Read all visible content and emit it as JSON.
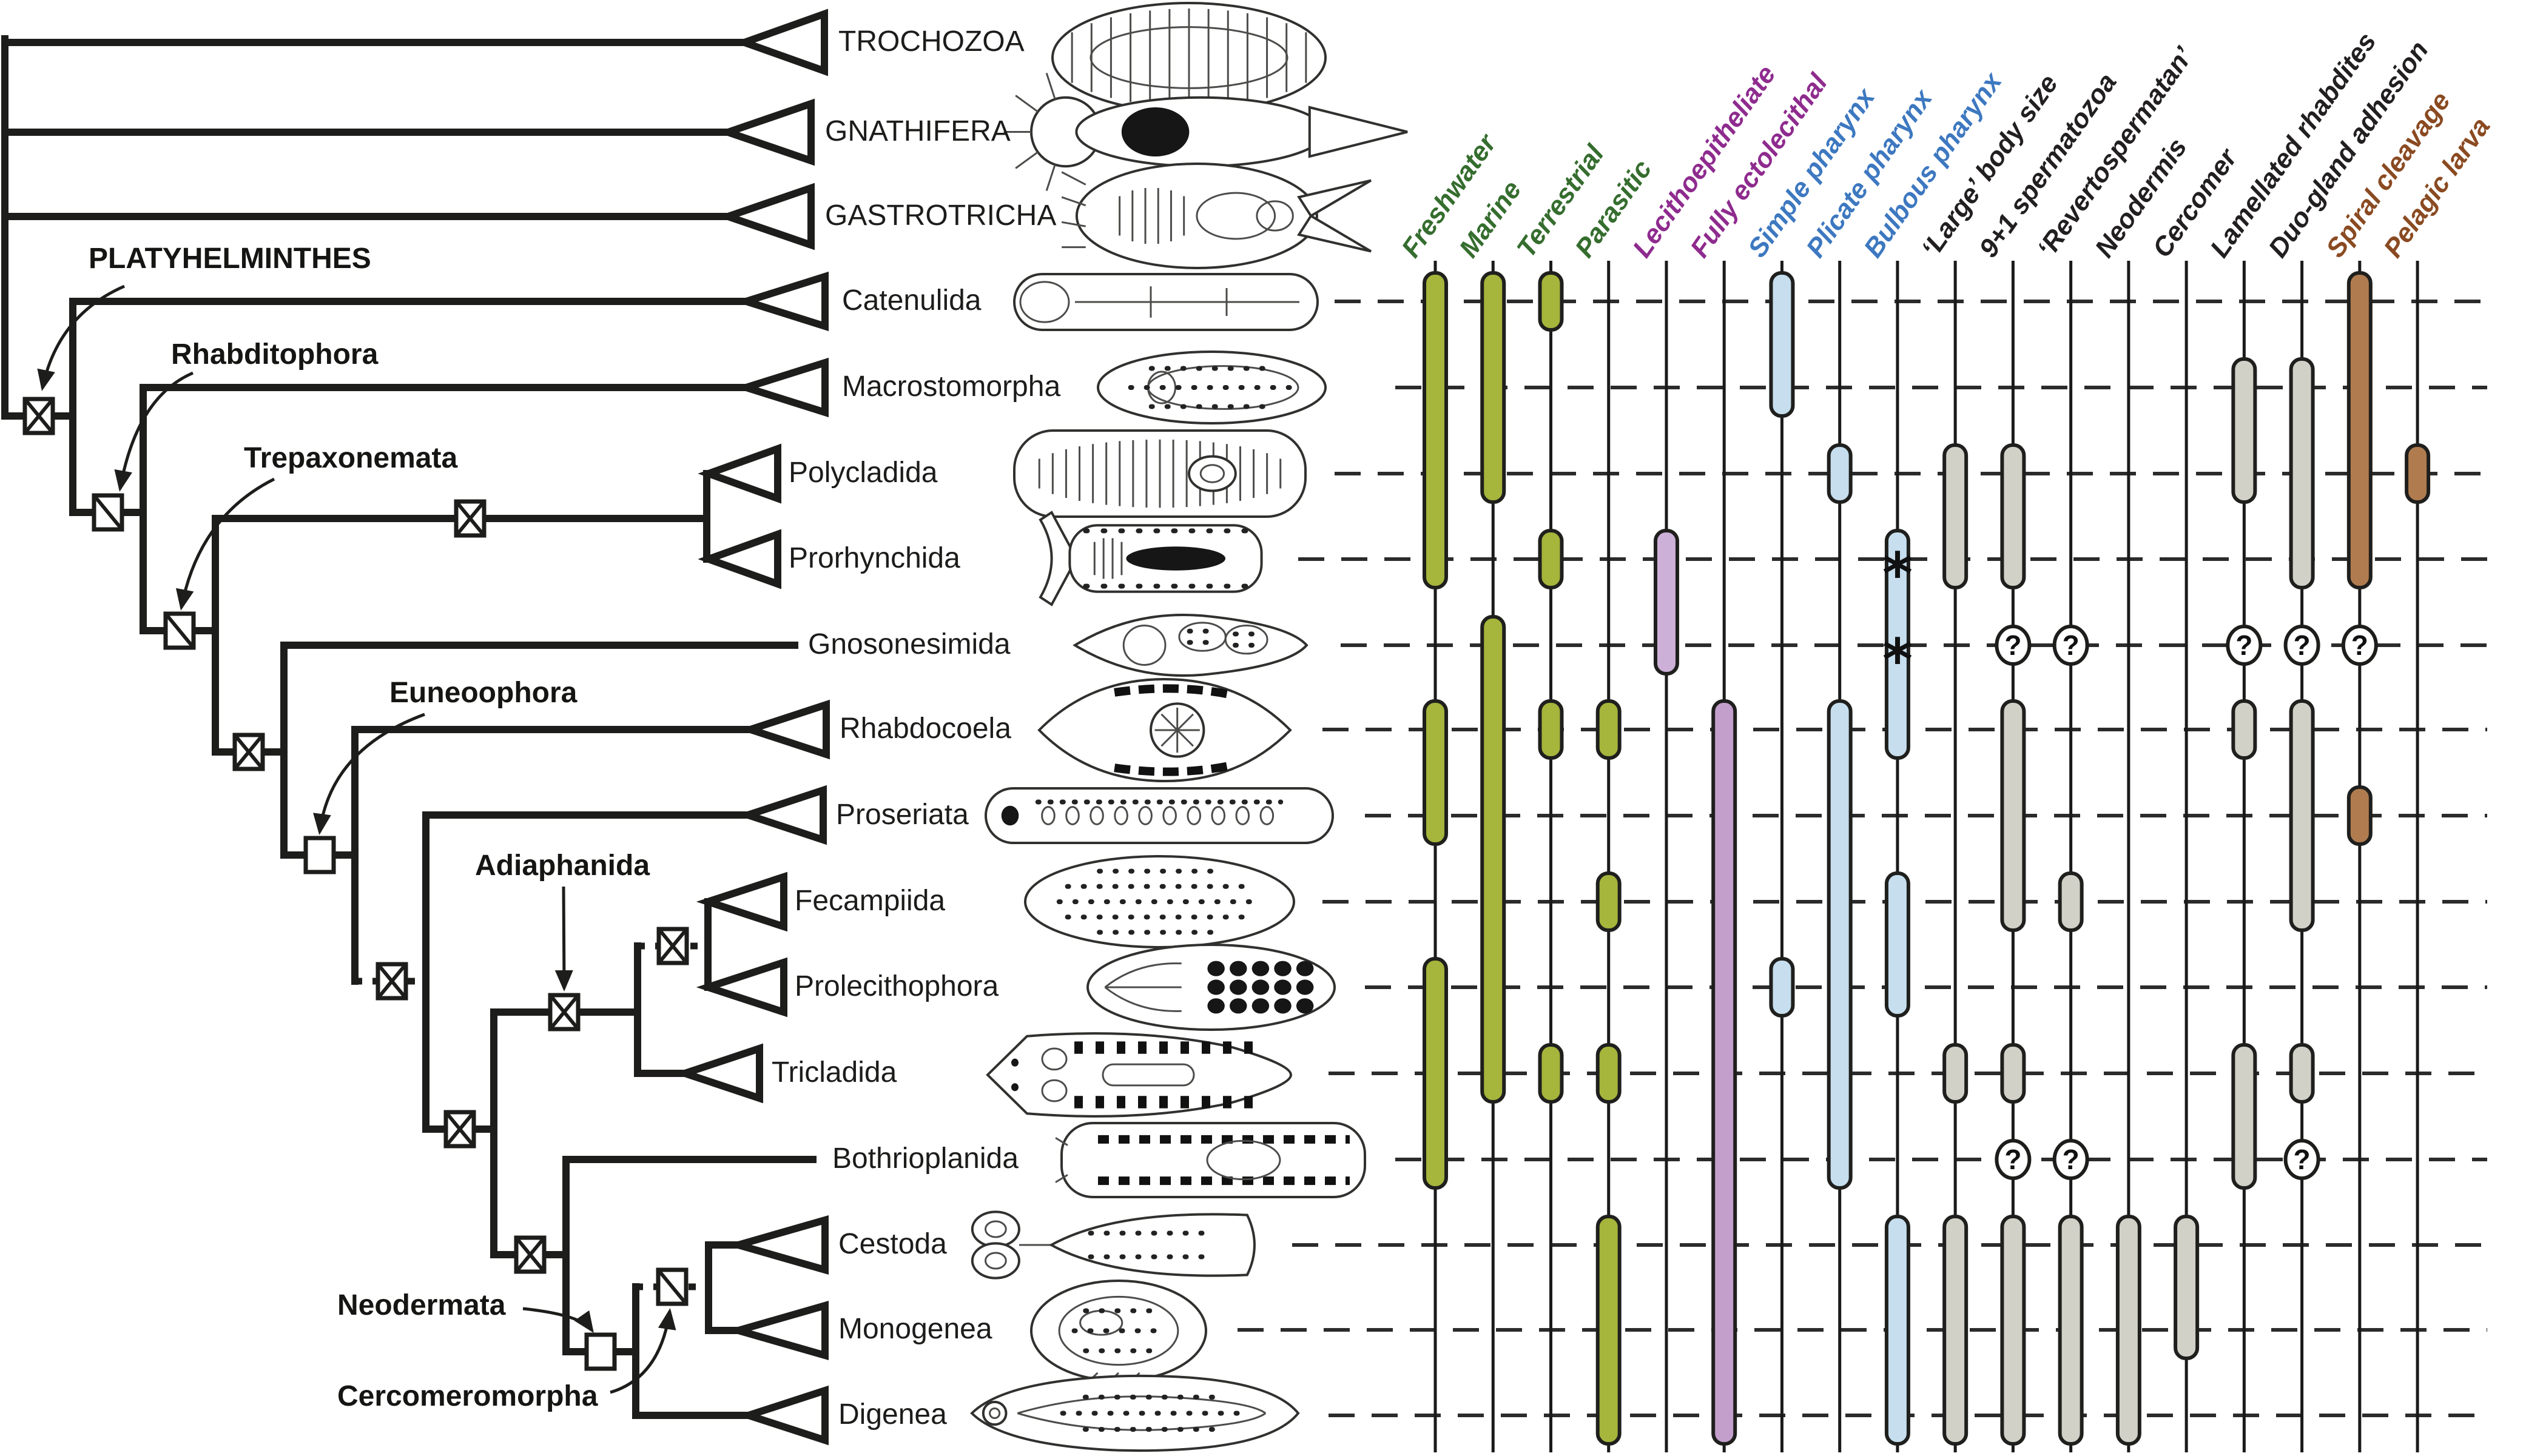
{
  "figure": {
    "kind": "phylogeny-with-trait-matrix",
    "group_shown": "Platyhelminthes"
  },
  "outgroups": [
    "TROCHOZOA",
    "GNATHIFERA",
    "GASTROTRICHA"
  ],
  "clade_labels": [
    "PLATYHELMINTHES",
    "Rhabditophora",
    "Trepaxonemata",
    "Euneoophora",
    "Adiaphanida",
    "Neodermata",
    "Cercomeromorpha"
  ],
  "node_symbols": [
    {
      "clade": "Platyhelminthes",
      "symbol": "crossed-box"
    },
    {
      "clade": "Rhabditophora",
      "symbol": "diagonal-box"
    },
    {
      "clade": "Trepaxonemata",
      "symbol": "diagonal-box"
    },
    {
      "clade": "Polycladida+Prorhynchida",
      "symbol": "crossed-box"
    },
    {
      "clade": "Gnosonesimida+Euneoophora",
      "symbol": "crossed-box"
    },
    {
      "clade": "Euneoophora",
      "symbol": "open-box"
    },
    {
      "clade": "Proseriata+higher",
      "symbol": "crossed-box-dotted-stem"
    },
    {
      "clade": "Adiaphanida+higher",
      "symbol": "crossed-box"
    },
    {
      "clade": "Adiaphanida",
      "symbol": "crossed-box"
    },
    {
      "clade": "Fecampiida+Prolecithophora",
      "symbol": "crossed-box-dotted-stem"
    },
    {
      "clade": "Bothrioplanida+Neodermata",
      "symbol": "crossed-box"
    },
    {
      "clade": "Neodermata",
      "symbol": "open-box"
    },
    {
      "clade": "Cercomeromorpha",
      "symbol": "diagonal-box-dotted-stem"
    }
  ],
  "chart_data": {
    "type": "cladogram_trait_matrix",
    "taxa": [
      "Catenulida",
      "Macrostomorpha",
      "Polycladida",
      "Prorhynchida",
      "Gnosonesimida",
      "Rhabdocoela",
      "Proseriata",
      "Fecampiida",
      "Prolecithophora",
      "Tricladida",
      "Bothrioplanida",
      "Cestoda",
      "Monogenea",
      "Digenea"
    ],
    "traits": [
      {
        "label": "Freshwater",
        "text_color": "#356d2e",
        "bar_color": "#a6b53b"
      },
      {
        "label": "Marine",
        "text_color": "#356d2e",
        "bar_color": "#a6b53b"
      },
      {
        "label": "Terrestrial",
        "text_color": "#356d2e",
        "bar_color": "#a6b53b"
      },
      {
        "label": "Parasitic",
        "text_color": "#356d2e",
        "bar_color": "#a6b53b"
      },
      {
        "label": "Lecithoepitheliate",
        "text_color": "#8e2b8e",
        "bar_color": "#cdb0d8"
      },
      {
        "label": "Fully ectolecithal",
        "text_color": "#8e2b8e",
        "bar_color": "#c39fcc"
      },
      {
        "label": "Simple pharynx",
        "text_color": "#3d78c0",
        "bar_color": "#c6deed"
      },
      {
        "label": "Plicate pharynx",
        "text_color": "#3d78c0",
        "bar_color": "#c6deed"
      },
      {
        "label": "Bulbous pharynx",
        "text_color": "#3d78c0",
        "bar_color": "#c6deed"
      },
      {
        "label": "‘Large’ body size",
        "text_color": "#221f20",
        "bar_color": "#d2d1c8"
      },
      {
        "label": "9+1 spermatozoa",
        "text_color": "#221f20",
        "bar_color": "#d2d1c8"
      },
      {
        "label": "‘Revertospermatan’",
        "text_color": "#221f20",
        "bar_color": "#d2d1c8"
      },
      {
        "label": "Neodermis",
        "text_color": "#221f20",
        "bar_color": "#d2d1c8"
      },
      {
        "label": "Cercomer",
        "text_color": "#221f20",
        "bar_color": "#d2d1c8"
      },
      {
        "label": "Lamellated rhabdites",
        "text_color": "#221f20",
        "bar_color": "#d2d1c8"
      },
      {
        "label": "Duo-gland adhesion",
        "text_color": "#221f20",
        "bar_color": "#d2d1c8"
      },
      {
        "label": "Spiral cleavage",
        "text_color": "#8a4a21",
        "bar_color": "#b07c4f"
      },
      {
        "label": "Pelagic larva",
        "text_color": "#8a4a21",
        "bar_color": "#b07c4f"
      }
    ],
    "presence": {
      "Freshwater": [
        [
          "Catenulida",
          "Prorhynchida"
        ],
        [
          "Rhabdocoela",
          "Proseriata"
        ],
        [
          "Prolecithophora",
          "Bothrioplanida"
        ]
      ],
      "Marine": [
        [
          "Catenulida",
          "Polycladida"
        ],
        [
          "Gnosonesimida",
          "Tricladida"
        ]
      ],
      "Terrestrial": [
        [
          "Catenulida",
          "Catenulida"
        ],
        [
          "Prorhynchida",
          "Prorhynchida"
        ],
        [
          "Rhabdocoela",
          "Rhabdocoela"
        ],
        [
          "Tricladida",
          "Tricladida"
        ]
      ],
      "Parasitic": [
        [
          "Rhabdocoela",
          "Rhabdocoela"
        ],
        [
          "Fecampiida",
          "Fecampiida"
        ],
        [
          "Tricladida",
          "Tricladida"
        ],
        [
          "Cestoda",
          "Digenea"
        ]
      ],
      "Lecithoepitheliate": [
        [
          "Prorhynchida",
          "Gnosonesimida"
        ]
      ],
      "Fully ectolecithal": [
        [
          "Rhabdocoela",
          "Digenea"
        ]
      ],
      "Simple pharynx": [
        [
          "Catenulida",
          "Macrostomorpha"
        ],
        [
          "Prolecithophora",
          "Prolecithophora"
        ]
      ],
      "Plicate pharynx": [
        [
          "Polycladida",
          "Polycladida"
        ],
        [
          "Rhabdocoela",
          "Bothrioplanida"
        ]
      ],
      "Bulbous pharynx": [
        [
          "Prorhynchida",
          "Rhabdocoela"
        ],
        [
          "Fecampiida",
          "Prolecithophora"
        ],
        [
          "Cestoda",
          "Digenea"
        ]
      ],
      "‘Large’ body size": [
        [
          "Polycladida",
          "Prorhynchida"
        ],
        [
          "Tricladida",
          "Tricladida"
        ],
        [
          "Cestoda",
          "Digenea"
        ]
      ],
      "9+1 spermatozoa": [
        [
          "Polycladida",
          "Prorhynchida"
        ],
        [
          "Rhabdocoela",
          "Fecampiida"
        ],
        [
          "Tricladida",
          "Tricladida"
        ],
        [
          "Cestoda",
          "Digenea"
        ]
      ],
      "‘Revertospermatan’": [
        [
          "Fecampiida",
          "Fecampiida"
        ],
        [
          "Cestoda",
          "Digenea"
        ]
      ],
      "Neodermis": [
        [
          "Cestoda",
          "Digenea"
        ]
      ],
      "Cercomer": [
        [
          "Cestoda",
          "Monogenea"
        ]
      ],
      "Lamellated rhabdites": [
        [
          "Macrostomorpha",
          "Polycladida"
        ],
        [
          "Rhabdocoela",
          "Rhabdocoela"
        ],
        [
          "Tricladida",
          "Bothrioplanida"
        ]
      ],
      "Duo-gland adhesion": [
        [
          "Macrostomorpha",
          "Prorhynchida"
        ],
        [
          "Rhabdocoela",
          "Fecampiida"
        ],
        [
          "Tricladida",
          "Tricladida"
        ]
      ],
      "Spiral cleavage": [
        [
          "Catenulida",
          "Prorhynchida"
        ],
        [
          "Proseriata",
          "Proseriata"
        ]
      ],
      "Pelagic larva": [
        [
          "Polycladida",
          "Polycladida"
        ]
      ]
    },
    "uncertain": [
      {
        "taxon": "Gnosonesimida",
        "trait": "9+1 spermatozoa"
      },
      {
        "taxon": "Gnosonesimida",
        "trait": "‘Revertospermatan’"
      },
      {
        "taxon": "Gnosonesimida",
        "trait": "Lamellated rhabdites"
      },
      {
        "taxon": "Gnosonesimida",
        "trait": "Duo-gland adhesion"
      },
      {
        "taxon": "Gnosonesimida",
        "trait": "Spiral cleavage"
      },
      {
        "taxon": "Bothrioplanida",
        "trait": "9+1 spermatozoa"
      },
      {
        "taxon": "Bothrioplanida",
        "trait": "‘Revertospermatan’"
      },
      {
        "taxon": "Bothrioplanida",
        "trait": "Duo-gland adhesion"
      }
    ],
    "asterisks": [
      {
        "taxon": "Prorhynchida",
        "trait": "Bulbous pharynx",
        "mark": "*"
      },
      {
        "taxon": "Gnosonesimida",
        "trait": "Bulbous pharynx",
        "mark": "*"
      }
    ],
    "uncertain_mark": "?"
  }
}
